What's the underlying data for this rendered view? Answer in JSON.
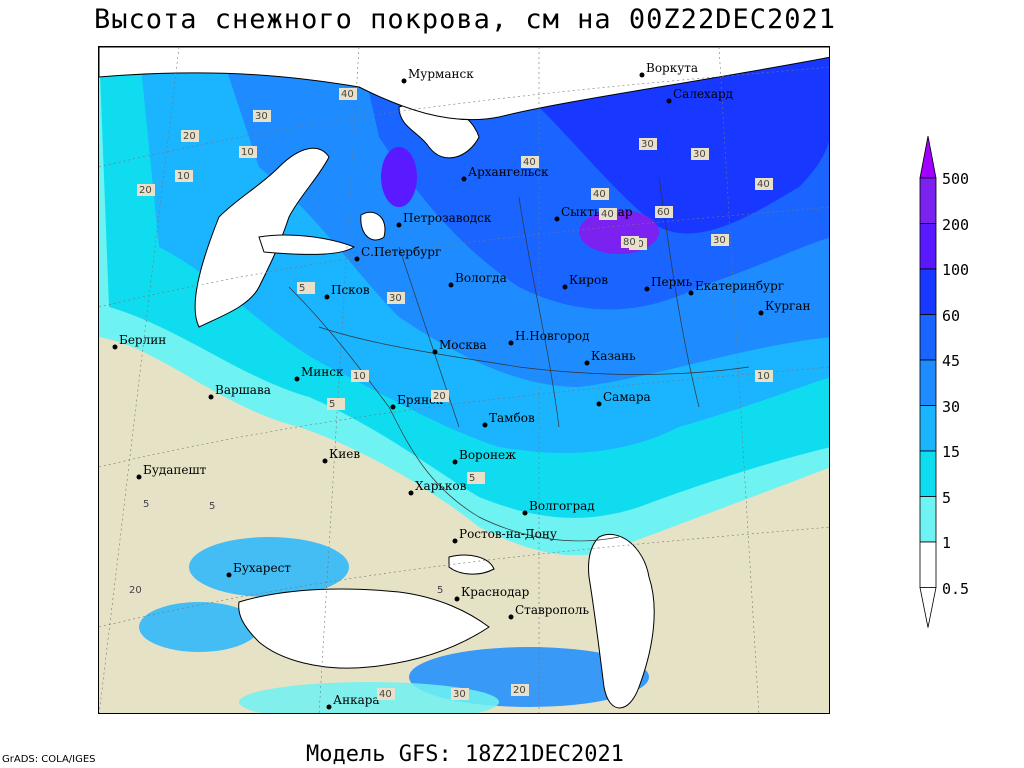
{
  "title": "Высота снежного покрова, см на 00Z22DEC2021",
  "footer": "Модель GFS: 18Z21DEC2021",
  "credit": "GrADS: COLA/IGES",
  "legend": {
    "levels": [
      "500",
      "200",
      "100",
      "60",
      "45",
      "30",
      "15",
      "5",
      "1",
      "0.5"
    ],
    "colors": [
      "#a000ff",
      "#7b22f0",
      "#5a1aff",
      "#1838ff",
      "#1a64ff",
      "#1e8cff",
      "#1ab4ff",
      "#10dcf0",
      "#6ef2f2",
      "#ffffff"
    ]
  },
  "cities": [
    {
      "name": "Мурманск"
    },
    {
      "name": "Воркута"
    },
    {
      "name": "Салехард"
    },
    {
      "name": "Архангельск"
    },
    {
      "name": "Сыктывкар"
    },
    {
      "name": "Петрозаводск"
    },
    {
      "name": "С.Петербург"
    },
    {
      "name": "Вологда"
    },
    {
      "name": "Киров"
    },
    {
      "name": "Пермь"
    },
    {
      "name": "Екатеринбург"
    },
    {
      "name": "Курган"
    },
    {
      "name": "Псков"
    },
    {
      "name": "Н.Новгород"
    },
    {
      "name": "Москва"
    },
    {
      "name": "Казань"
    },
    {
      "name": "Берлин"
    },
    {
      "name": "Минск"
    },
    {
      "name": "Варшава"
    },
    {
      "name": "Брянск"
    },
    {
      "name": "Тамбов"
    },
    {
      "name": "Самара"
    },
    {
      "name": "Киев"
    },
    {
      "name": "Воронеж"
    },
    {
      "name": "Харьков"
    },
    {
      "name": "Будапешт"
    },
    {
      "name": "Волгоград"
    },
    {
      "name": "Ростов-на-Дону"
    },
    {
      "name": "Бухарест"
    },
    {
      "name": "Краснодар"
    },
    {
      "name": "Ставрополь"
    },
    {
      "name": "Анкара"
    }
  ],
  "contour_values": [
    "40",
    "30",
    "20",
    "10",
    "20",
    "10",
    "5",
    "40",
    "40",
    "30",
    "30",
    "40",
    "40",
    "60",
    "80",
    "30",
    "40",
    "30",
    "10",
    "5",
    "5",
    "5",
    "5",
    "20",
    "5",
    "30",
    "40",
    "20",
    "10",
    "20"
  ]
}
